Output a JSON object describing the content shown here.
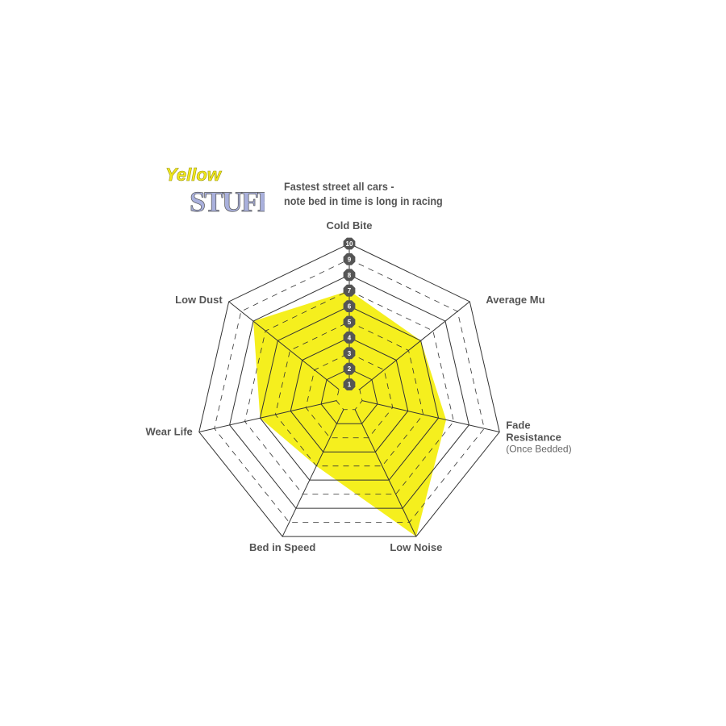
{
  "logo": {
    "line1": "Yellow",
    "line2": "STUFF"
  },
  "subtitle": {
    "line1": "Fastest street all cars -",
    "line2": "note bed in time is long in racing"
  },
  "chart_data": {
    "type": "radar",
    "axes": [
      {
        "label": "Cold Bite",
        "sub": ""
      },
      {
        "label": "Average Mu",
        "sub": ""
      },
      {
        "label": "Fade Resistance",
        "sub": "(Once Bedded)"
      },
      {
        "label": "Low Noise",
        "sub": ""
      },
      {
        "label": "Bed in Speed",
        "sub": ""
      },
      {
        "label": "Wear Life",
        "sub": ""
      },
      {
        "label": "Low Dust",
        "sub": ""
      }
    ],
    "values": [
      7,
      6,
      6.5,
      10,
      5,
      6,
      8
    ],
    "scale": {
      "min": 1,
      "max": 10,
      "ticks": [
        "1",
        "2",
        "3",
        "4",
        "5",
        "6",
        "7",
        "8",
        "9",
        "10"
      ]
    },
    "fill_color": "#f5ef1e",
    "grid_color": "#333333",
    "tick_badge_color": "#555555"
  }
}
